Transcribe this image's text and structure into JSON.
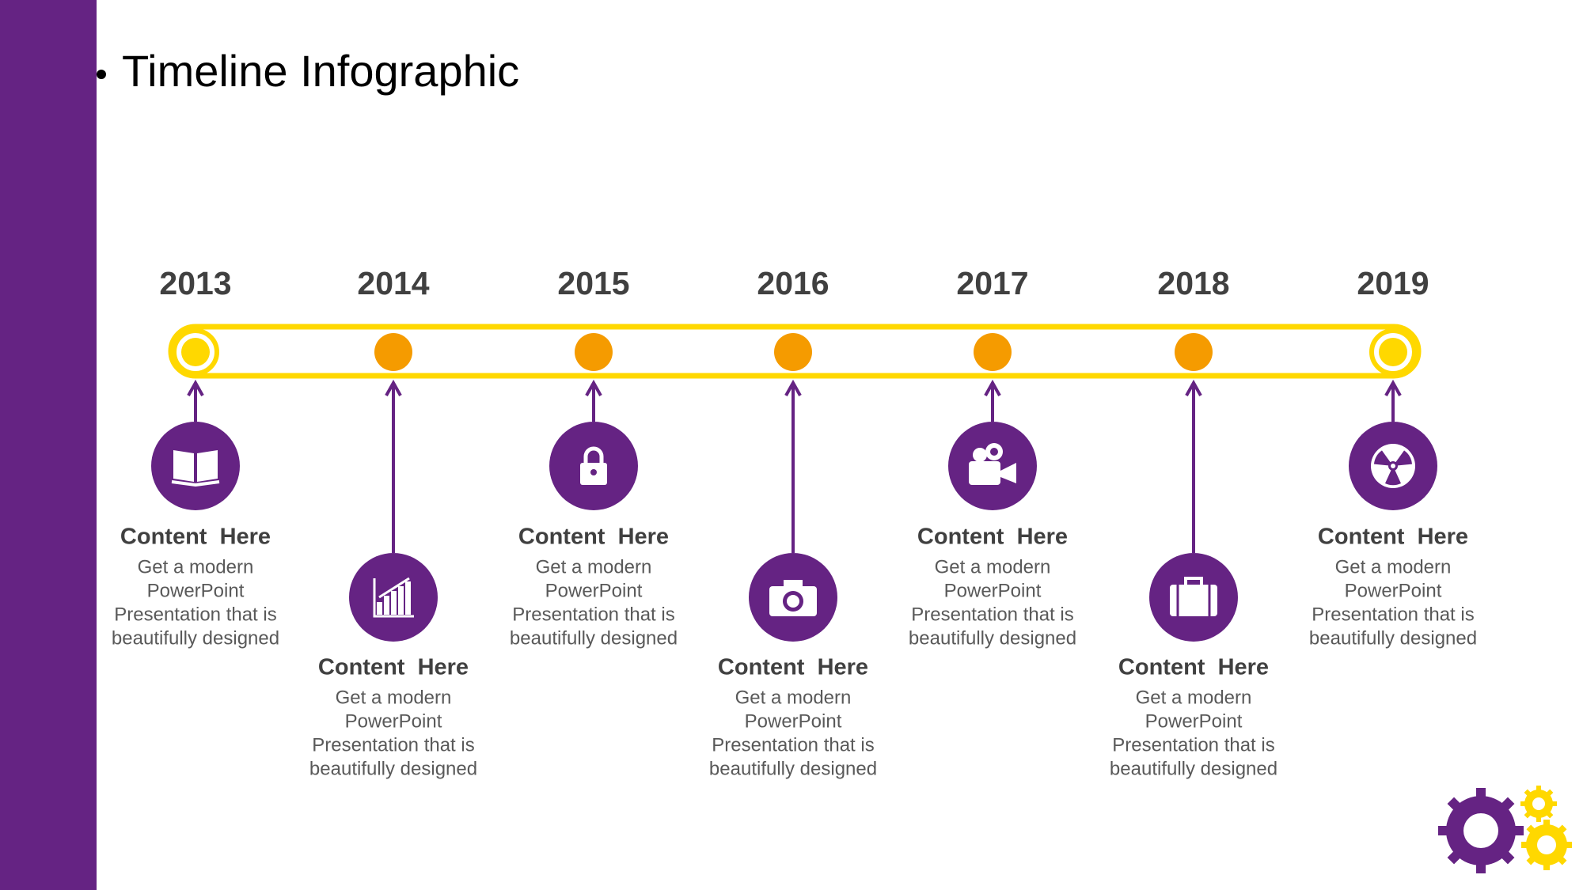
{
  "header": {
    "title": "Timeline Infographic"
  },
  "items": [
    {
      "year": "2013",
      "heading": "Content  Here",
      "lines": [
        "Get a modern",
        "PowerPoint",
        "Presentation that is",
        "beautifully designed"
      ]
    },
    {
      "year": "2014",
      "heading": "Content  Here",
      "lines": [
        "Get a modern",
        "PowerPoint",
        "Presentation that is",
        "beautifully designed"
      ]
    },
    {
      "year": "2015",
      "heading": "Content  Here",
      "lines": [
        "Get a modern",
        "PowerPoint",
        "Presentation that is",
        "beautifully designed"
      ]
    },
    {
      "year": "2016",
      "heading": "Content  Here",
      "lines": [
        "Get a modern",
        "PowerPoint",
        "Presentation that is",
        "beautifully designed"
      ]
    },
    {
      "year": "2017",
      "heading": "Content  Here",
      "lines": [
        "Get a modern",
        "PowerPoint",
        "Presentation that is",
        "beautifully designed"
      ]
    },
    {
      "year": "2018",
      "heading": "Content  Here",
      "lines": [
        "Get a modern",
        "PowerPoint",
        "Presentation that is",
        "beautifully designed"
      ]
    },
    {
      "year": "2019",
      "heading": "Content  Here",
      "lines": [
        "Get a modern",
        "PowerPoint",
        "Presentation that is",
        "beautifully designed"
      ]
    }
  ]
}
